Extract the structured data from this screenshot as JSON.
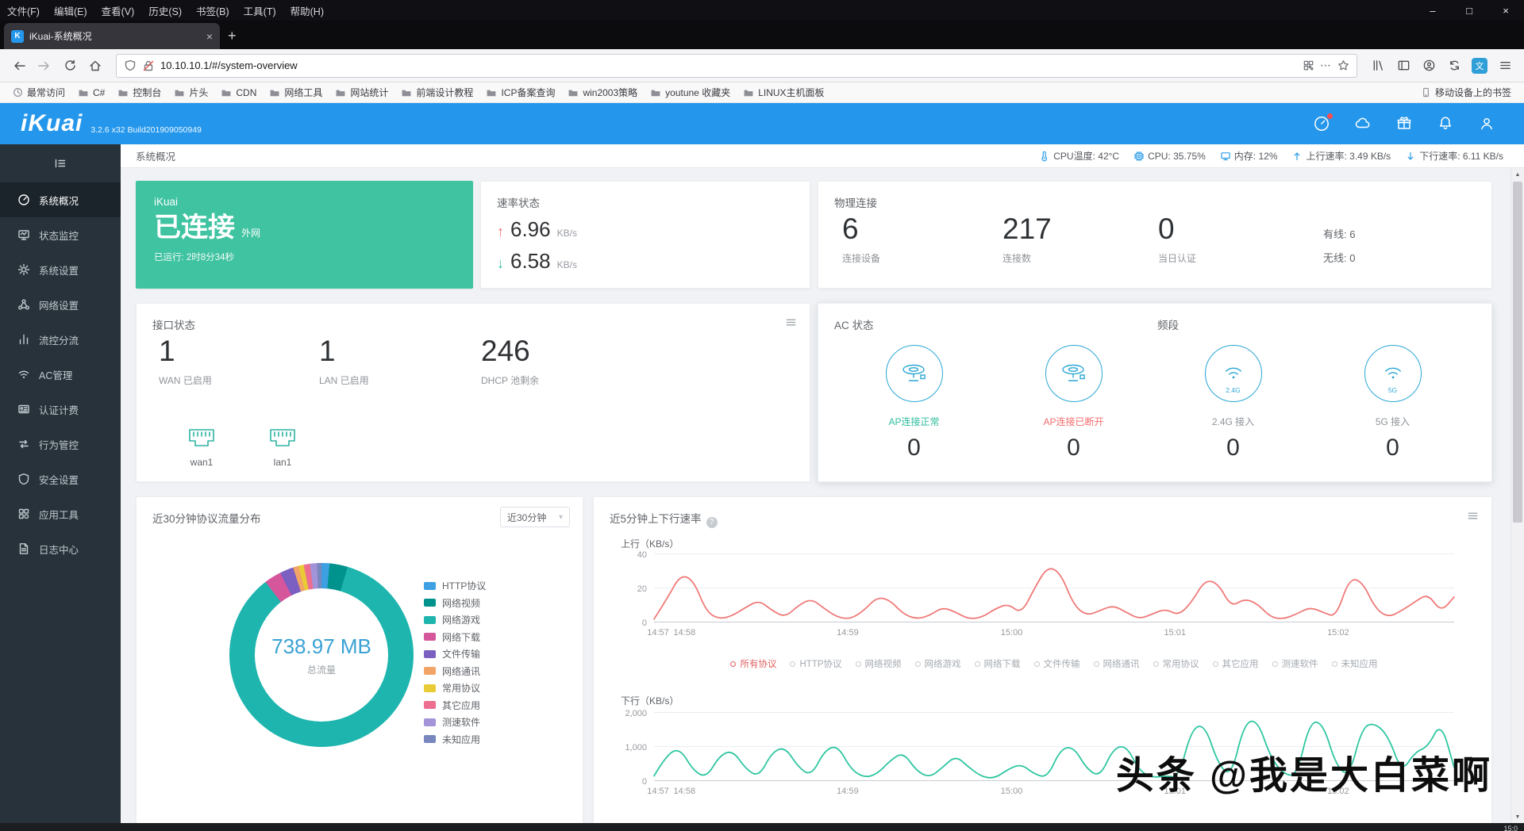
{
  "browser": {
    "menubar": {
      "items": [
        "文件(F)",
        "编辑(E)",
        "查看(V)",
        "历史(S)",
        "书签(B)",
        "工具(T)",
        "帮助(H)"
      ]
    },
    "window_controls": {
      "minimize": "–",
      "maximize": "□",
      "close": "×"
    },
    "tab": {
      "title": "iKuai-系统概况",
      "favicon": "K",
      "close": "×",
      "new_tab": "+"
    },
    "urlbar": {
      "url": "10.10.10.1/#/system-overview",
      "dots": "⋯"
    },
    "bookmarks": {
      "items": [
        "最常访问",
        "C#",
        "控制台",
        "片头",
        "CDN",
        "网络工具",
        "网站统计",
        "前端设计教程",
        "ICP备案查询",
        "win2003策略",
        "youtune 收藏夹",
        "LINUX主机面板"
      ],
      "right_item": "移动设备上的书签"
    }
  },
  "app": {
    "logo": "iKuai",
    "version": "3.2.6 x32 Build201909050949",
    "breadcrumb": "系统概况",
    "statusbar": [
      {
        "text": "CPU温度: 42°C"
      },
      {
        "text": "CPU: 35.75%"
      },
      {
        "text": "内存: 12%"
      },
      {
        "text": "上行速率: 3.49 KB/s"
      },
      {
        "text": "下行速率: 6.11 KB/s"
      }
    ]
  },
  "sidebar": {
    "active_index": 0,
    "items": [
      "系统概况",
      "状态监控",
      "系统设置",
      "网络设置",
      "流控分流",
      "AC管理",
      "认证计费",
      "行为管控",
      "安全设置",
      "应用工具",
      "日志中心"
    ]
  },
  "cards": {
    "connection": {
      "brand": "iKuai",
      "status": "已连接",
      "status_tag": "外网",
      "uptime": "已运行: 2时8分34秒",
      "accent": "#3fc3a1"
    },
    "speed": {
      "title": "速率状态",
      "up": {
        "arrow": "↑",
        "value": "6.96",
        "unit": "KB/s",
        "color": "#f56c6c"
      },
      "down": {
        "arrow": "↓",
        "value": "6.58",
        "unit": "KB/s",
        "color": "#2dbd9e"
      }
    },
    "physical": {
      "title": "物理连接",
      "stats": [
        {
          "value": "6",
          "label": "连接设备"
        },
        {
          "value": "217",
          "label": "连接数"
        },
        {
          "value": "0",
          "label": "当日认证"
        }
      ],
      "wired": "有线: 6",
      "wireless": "无线: 0"
    },
    "interface": {
      "title": "接口状态",
      "stats": [
        {
          "value": "1",
          "label": "WAN 已启用"
        },
        {
          "value": "1",
          "label": "LAN 已启用"
        },
        {
          "value": "246",
          "label": "DHCP 池剩余"
        }
      ],
      "ports": [
        {
          "name": "wan1"
        },
        {
          "name": "lan1"
        }
      ]
    },
    "ac": {
      "title": "AC 状态",
      "band_title": "频段",
      "items": [
        {
          "label": "AP连接正常",
          "value": "0",
          "label_color": "#2dbd9e"
        },
        {
          "label": "AP连接已断开",
          "value": "0",
          "label_color": "#f56c6c"
        },
        {
          "label": "2.4G 接入",
          "value": "0",
          "label_color": "#8f959b",
          "band": "2.4G"
        },
        {
          "label": "5G 接入",
          "value": "0",
          "label_color": "#8f959b",
          "band": "5G"
        }
      ]
    },
    "rate_card": {
      "title": "近5分钟上下行速率",
      "help": "?"
    },
    "rate_legend": [
      {
        "label": "所有协议",
        "active": true
      },
      {
        "label": "HTTP协议"
      },
      {
        "label": "网络视频"
      },
      {
        "label": "网络游戏"
      },
      {
        "label": "网络下载"
      },
      {
        "label": "文件传输"
      },
      {
        "label": "网络通讯"
      },
      {
        "label": "常用协议"
      },
      {
        "label": "其它应用"
      },
      {
        "label": "测速软件"
      },
      {
        "label": "未知应用"
      }
    ]
  },
  "chart_data": [
    {
      "id": "protocol-traffic-distribution",
      "type": "pie",
      "title": "近30分钟协议流量分布",
      "range_selector": "近30分钟",
      "center_value": "738.97 MB",
      "center_label": "总流量",
      "legend_position": "right",
      "slices": [
        {
          "label": "HTTP协议",
          "color": "#3da0e2",
          "pct": 1.4
        },
        {
          "label": "网络视频",
          "color": "#00938d",
          "pct": 3.2
        },
        {
          "label": "网络游戏",
          "color": "#1eb5ae",
          "pct": 85.0
        },
        {
          "label": "网络下载",
          "color": "#d6569c",
          "pct": 3.0
        },
        {
          "label": "文件传输",
          "color": "#7b5fc1",
          "pct": 2.4
        },
        {
          "label": "网络通讯",
          "color": "#f2a466",
          "pct": 1.0
        },
        {
          "label": "常用协议",
          "color": "#e9cb35",
          "pct": 0.9
        },
        {
          "label": "其它应用",
          "color": "#ec6f91",
          "pct": 1.1
        },
        {
          "label": "测速软件",
          "color": "#a393d8",
          "pct": 1.2
        },
        {
          "label": "未知应用",
          "color": "#7887be",
          "pct": 0.8
        }
      ]
    },
    {
      "id": "rate-upload",
      "type": "line",
      "parent_title": "近5分钟上下行速率",
      "series_label": "上行（KB/s）",
      "color": "#ef7b79",
      "grid": true,
      "ylim": [
        0,
        40
      ],
      "yticks": [
        "0",
        "20",
        "40"
      ],
      "xticks": [
        {
          "label": "14:57",
          "pos": 0.005
        },
        {
          "label": "14:58",
          "pos": 0.038
        },
        {
          "label": "14:59",
          "pos": 0.242
        },
        {
          "label": "15:00",
          "pos": 0.447
        },
        {
          "label": "15:01",
          "pos": 0.651
        },
        {
          "label": "15:02",
          "pos": 0.855
        }
      ],
      "values": [
        2,
        14,
        28,
        25,
        6,
        2,
        4,
        9,
        13,
        7,
        3,
        10,
        14,
        8,
        3,
        2,
        7,
        15,
        13,
        5,
        2,
        4,
        9,
        6,
        2,
        3,
        8,
        11,
        5,
        20,
        33,
        29,
        10,
        4,
        7,
        10,
        6,
        2,
        5,
        8,
        4,
        12,
        25,
        23,
        9,
        14,
        11,
        3,
        2,
        5,
        9,
        6,
        3,
        26,
        24,
        8,
        3,
        7,
        12,
        17,
        6,
        15
      ]
    },
    {
      "id": "rate-download",
      "type": "line",
      "series_label": "下行（KB/s）",
      "color": "#2fc6a1",
      "grid": true,
      "ylim": [
        0,
        2000
      ],
      "yticks": [
        "0",
        "1,000",
        "2,000"
      ],
      "xticks": [
        {
          "label": "14:57",
          "pos": 0.005
        },
        {
          "label": "14:58",
          "pos": 0.038
        },
        {
          "label": "14:59",
          "pos": 0.242
        },
        {
          "label": "15:00",
          "pos": 0.447
        },
        {
          "label": "15:01",
          "pos": 0.651
        },
        {
          "label": "15:02",
          "pos": 0.855
        }
      ],
      "values": [
        150,
        800,
        950,
        300,
        100,
        750,
        900,
        350,
        120,
        850,
        1000,
        400,
        150,
        900,
        1050,
        350,
        100,
        200,
        600,
        850,
        300,
        100,
        400,
        750,
        400,
        120,
        80,
        350,
        500,
        200,
        100,
        950,
        1000,
        350,
        120,
        950,
        1050,
        300,
        100,
        150,
        100,
        1550,
        1650,
        500,
        120,
        1700,
        1800,
        700,
        200,
        150,
        1750,
        1700,
        450,
        120,
        1600,
        1700,
        1300,
        250,
        850,
        1000,
        1750,
        400
      ]
    }
  ],
  "watermark": "头条 @我是大白菜啊",
  "taskbar": {
    "clock": "15:0"
  }
}
